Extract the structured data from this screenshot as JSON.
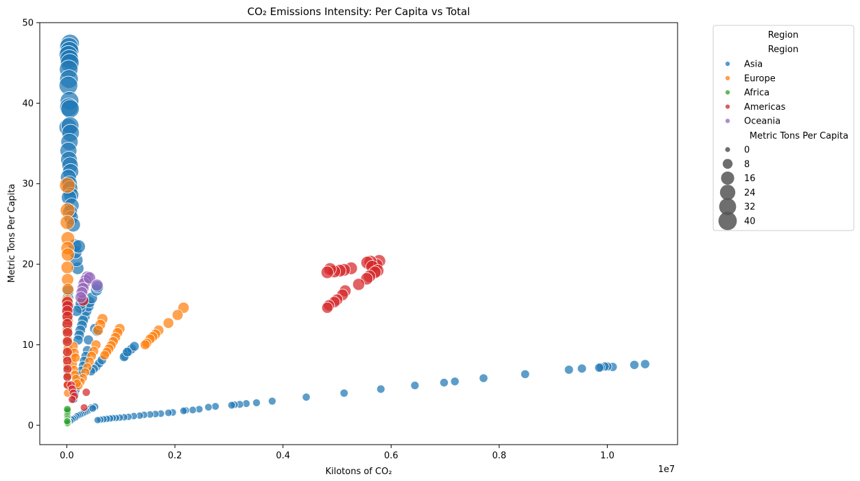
{
  "chart_data": {
    "type": "scatter",
    "title": "CO₂ Emissions Intensity: Per Capita vs Total",
    "xlabel": "Kilotons of CO₂",
    "ylabel": "Metric Tons Per Capita",
    "x_offset_label": "1e7",
    "xlim": [
      -500000,
      11300000
    ],
    "ylim": [
      -2.4,
      50
    ],
    "x_ticks": [
      0,
      2000000,
      4000000,
      6000000,
      8000000,
      10000000
    ],
    "x_tick_labels": [
      "0.0",
      "0.2",
      "0.4",
      "0.6",
      "0.8",
      "1.0"
    ],
    "y_ticks": [
      0,
      10,
      20,
      30,
      40,
      50
    ],
    "y_tick_labels": [
      "0",
      "10",
      "20",
      "30",
      "40",
      "50"
    ],
    "grid": false,
    "legend_position": "outside-right",
    "legend": {
      "title": "Region",
      "hue_header": "Region",
      "size_header": "Metric Tons Per Capita",
      "size_values": [
        0,
        8,
        16,
        24,
        32,
        40
      ],
      "size_labels": [
        "0",
        "8",
        "16",
        "24",
        "32",
        "40"
      ]
    },
    "series": [
      {
        "name": "Asia",
        "color": "#1f77b4",
        "points": [
          [
            10700000,
            7.6
          ],
          [
            10500000,
            7.5
          ],
          [
            10100000,
            7.25
          ],
          [
            10000000,
            7.3
          ],
          [
            9950000,
            7.3
          ],
          [
            9880000,
            7.2
          ],
          [
            9850000,
            7.15
          ],
          [
            9530000,
            7.05
          ],
          [
            9290000,
            6.9
          ],
          [
            8480000,
            6.35
          ],
          [
            7710000,
            5.85
          ],
          [
            7180000,
            5.45
          ],
          [
            6980000,
            5.3
          ],
          [
            6440000,
            4.95
          ],
          [
            5810000,
            4.5
          ],
          [
            5130000,
            4.0
          ],
          [
            4430000,
            3.5
          ],
          [
            3800000,
            3.0
          ],
          [
            3510000,
            2.8
          ],
          [
            3320000,
            2.7
          ],
          [
            3200000,
            2.6
          ],
          [
            3100000,
            2.55
          ],
          [
            3050000,
            2.5
          ],
          [
            2750000,
            2.35
          ],
          [
            2620000,
            2.25
          ],
          [
            2450000,
            2.0
          ],
          [
            2330000,
            1.9
          ],
          [
            2200000,
            1.85
          ],
          [
            2160000,
            1.8
          ],
          [
            1960000,
            1.6
          ],
          [
            1880000,
            1.55
          ],
          [
            1740000,
            1.45
          ],
          [
            1640000,
            1.4
          ],
          [
            1540000,
            1.35
          ],
          [
            1430000,
            1.3
          ],
          [
            1350000,
            1.2
          ],
          [
            1240000,
            1.15
          ],
          [
            1140000,
            1.05
          ],
          [
            1060000,
            1.0
          ],
          [
            980000,
            0.95
          ],
          [
            910000,
            0.9
          ],
          [
            850000,
            0.9
          ],
          [
            800000,
            0.85
          ],
          [
            740000,
            0.8
          ],
          [
            680000,
            0.75
          ],
          [
            620000,
            0.7
          ],
          [
            570000,
            0.65
          ],
          [
            1080000,
            8.6
          ],
          [
            1100000,
            8.9
          ],
          [
            1150000,
            9.2
          ],
          [
            1200000,
            9.5
          ],
          [
            1250000,
            9.8
          ],
          [
            1060000,
            8.5
          ],
          [
            1120000,
            9.1
          ],
          [
            550000,
            7.3
          ],
          [
            600000,
            7.7
          ],
          [
            650000,
            8.1
          ],
          [
            500000,
            7.0
          ],
          [
            450000,
            6.7
          ],
          [
            200000,
            19.5
          ],
          [
            180000,
            20.5
          ],
          [
            160000,
            21.5
          ],
          [
            150000,
            22.3
          ],
          [
            220000,
            22.2
          ],
          [
            60000,
            47.4
          ],
          [
            40000,
            47.0
          ],
          [
            50000,
            46.5
          ],
          [
            30000,
            46.0
          ],
          [
            45000,
            45.5
          ],
          [
            55000,
            45.0
          ],
          [
            35000,
            44.2
          ],
          [
            40000,
            43.0
          ],
          [
            30000,
            42.2
          ],
          [
            50000,
            40.3
          ],
          [
            40000,
            39.5
          ],
          [
            60000,
            39.3
          ],
          [
            20000,
            37.0
          ],
          [
            60000,
            37.2
          ],
          [
            70000,
            36.3
          ],
          [
            50000,
            35.2
          ],
          [
            30000,
            34.1
          ],
          [
            40000,
            33.0
          ],
          [
            60000,
            32.3
          ],
          [
            70000,
            31.5
          ],
          [
            30000,
            30.8
          ],
          [
            50000,
            30.0
          ],
          [
            60000,
            29.4
          ],
          [
            80000,
            28.6
          ],
          [
            40000,
            28.3
          ],
          [
            90000,
            27.3
          ],
          [
            60000,
            26.5
          ],
          [
            80000,
            25.8
          ],
          [
            120000,
            24.9
          ],
          [
            330000,
            13.5
          ],
          [
            360000,
            14.2
          ],
          [
            400000,
            14.8
          ],
          [
            420000,
            15.3
          ],
          [
            460000,
            15.8
          ],
          [
            300000,
            13.0
          ],
          [
            280000,
            12.4
          ],
          [
            250000,
            11.8
          ],
          [
            230000,
            11.2
          ],
          [
            210000,
            10.6
          ],
          [
            250000,
            14.6
          ],
          [
            260000,
            15.1
          ],
          [
            180000,
            14.2
          ],
          [
            300000,
            15.6
          ],
          [
            550000,
            16.8
          ],
          [
            570000,
            17.2
          ],
          [
            520000,
            12.0
          ],
          [
            560000,
            11.7
          ],
          [
            400000,
            10.6
          ],
          [
            380000,
            9.3
          ],
          [
            350000,
            8.6
          ],
          [
            320000,
            8.0
          ],
          [
            300000,
            7.4
          ],
          [
            270000,
            6.8
          ],
          [
            240000,
            6.2
          ],
          [
            210000,
            5.6
          ],
          [
            190000,
            5.0
          ],
          [
            170000,
            4.4
          ],
          [
            150000,
            3.8
          ],
          [
            130000,
            3.2
          ],
          [
            20000,
            15.8
          ],
          [
            25000,
            16.7
          ],
          [
            30000,
            14.9
          ],
          [
            20000,
            13.4
          ],
          [
            15000,
            12.4
          ],
          [
            20000,
            11.6
          ],
          [
            15000,
            10.2
          ],
          [
            10000,
            9.2
          ],
          [
            15000,
            8.3
          ],
          [
            10000,
            7.5
          ],
          [
            10000,
            6.8
          ],
          [
            12000,
            6.0
          ],
          [
            450000,
            2.2
          ],
          [
            420000,
            2.0
          ],
          [
            390000,
            1.8
          ],
          [
            360000,
            1.7
          ],
          [
            330000,
            1.6
          ],
          [
            300000,
            1.5
          ],
          [
            270000,
            1.4
          ],
          [
            240000,
            1.3
          ],
          [
            210000,
            1.2
          ],
          [
            180000,
            1.1
          ],
          [
            150000,
            0.9
          ],
          [
            120000,
            0.8
          ],
          [
            90000,
            0.7
          ],
          [
            60000,
            0.5
          ],
          [
            30000,
            0.4
          ],
          [
            520000,
            2.3
          ],
          [
            480000,
            2.1
          ]
        ]
      },
      {
        "name": "Europe",
        "color": "#ff7f0e",
        "points": [
          [
            2160000,
            14.6
          ],
          [
            2050000,
            13.7
          ],
          [
            1880000,
            12.7
          ],
          [
            1700000,
            11.8
          ],
          [
            1640000,
            11.3
          ],
          [
            1590000,
            11.0
          ],
          [
            1540000,
            10.7
          ],
          [
            1480000,
            10.2
          ],
          [
            1450000,
            10.0
          ],
          [
            980000,
            12.0
          ],
          [
            940000,
            11.5
          ],
          [
            900000,
            10.9
          ],
          [
            860000,
            10.4
          ],
          [
            820000,
            9.9
          ],
          [
            780000,
            9.5
          ],
          [
            740000,
            9.1
          ],
          [
            700000,
            8.7
          ],
          [
            660000,
            13.2
          ],
          [
            620000,
            12.5
          ],
          [
            580000,
            11.8
          ],
          [
            540000,
            10.0
          ],
          [
            500000,
            9.2
          ],
          [
            460000,
            8.6
          ],
          [
            420000,
            7.9
          ],
          [
            380000,
            7.2
          ],
          [
            340000,
            6.6
          ],
          [
            300000,
            5.9
          ],
          [
            260000,
            5.4
          ],
          [
            220000,
            4.9
          ],
          [
            10000,
            29.8
          ],
          [
            15000,
            26.7
          ],
          [
            10000,
            25.2
          ],
          [
            20000,
            23.2
          ],
          [
            15000,
            22.0
          ],
          [
            20000,
            21.2
          ],
          [
            10000,
            19.6
          ],
          [
            15000,
            18.1
          ],
          [
            20000,
            16.9
          ],
          [
            10000,
            15.5
          ],
          [
            15000,
            14.1
          ],
          [
            20000,
            13.0
          ],
          [
            10000,
            11.8
          ],
          [
            15000,
            10.6
          ],
          [
            20000,
            9.5
          ],
          [
            10000,
            8.4
          ],
          [
            15000,
            7.3
          ],
          [
            20000,
            6.2
          ],
          [
            10000,
            5.1
          ],
          [
            15000,
            4.0
          ],
          [
            60000,
            9.2
          ],
          [
            90000,
            8.3
          ],
          [
            110000,
            7.6
          ],
          [
            130000,
            6.9
          ],
          [
            150000,
            6.3
          ],
          [
            170000,
            5.8
          ],
          [
            190000,
            5.2
          ],
          [
            120000,
            9.8
          ],
          [
            140000,
            9.0
          ],
          [
            160000,
            8.4
          ]
        ]
      },
      {
        "name": "Africa",
        "color": "#2ca02c",
        "points": [
          [
            10000,
            0.2
          ],
          [
            12000,
            0.4
          ],
          [
            8000,
            0.6
          ],
          [
            15000,
            0.8
          ],
          [
            10000,
            1.0
          ],
          [
            12000,
            1.2
          ],
          [
            9000,
            1.4
          ],
          [
            11000,
            1.6
          ],
          [
            14000,
            1.8
          ],
          [
            10000,
            2.0
          ],
          [
            13000,
            0.3
          ],
          [
            7000,
            0.5
          ]
        ]
      },
      {
        "name": "Americas",
        "color": "#d62728",
        "points": [
          [
            5780000,
            20.4
          ],
          [
            5730000,
            19.9
          ],
          [
            5620000,
            20.3
          ],
          [
            5560000,
            20.2
          ],
          [
            5650000,
            19.7
          ],
          [
            5750000,
            19.2
          ],
          [
            5700000,
            19.0
          ],
          [
            5600000,
            18.5
          ],
          [
            5550000,
            18.2
          ],
          [
            5400000,
            17.5
          ],
          [
            5260000,
            19.5
          ],
          [
            5130000,
            19.3
          ],
          [
            5050000,
            19.2
          ],
          [
            4950000,
            19.1
          ],
          [
            4870000,
            19.4
          ],
          [
            4820000,
            19.0
          ],
          [
            5150000,
            16.7
          ],
          [
            5100000,
            16.2
          ],
          [
            5000000,
            15.6
          ],
          [
            4950000,
            15.3
          ],
          [
            4850000,
            14.9
          ],
          [
            4820000,
            14.6
          ],
          [
            10000,
            15.3
          ],
          [
            15000,
            14.8
          ],
          [
            10000,
            14.2
          ],
          [
            12000,
            13.5
          ],
          [
            10000,
            12.6
          ],
          [
            14000,
            11.5
          ],
          [
            10000,
            10.4
          ],
          [
            12000,
            9.1
          ],
          [
            10000,
            8.0
          ],
          [
            14000,
            7.0
          ],
          [
            10000,
            6.0
          ],
          [
            12000,
            5.0
          ],
          [
            80000,
            5.0
          ],
          [
            100000,
            4.5
          ],
          [
            120000,
            4.0
          ],
          [
            140000,
            3.6
          ],
          [
            100000,
            3.2
          ],
          [
            300000,
            15.5
          ],
          [
            360000,
            4.1
          ],
          [
            320000,
            2.2
          ]
        ]
      },
      {
        "name": "Oceania",
        "color": "#9467bd",
        "points": [
          [
            380000,
            18.4
          ],
          [
            350000,
            18.0
          ],
          [
            320000,
            17.6
          ],
          [
            300000,
            17.0
          ],
          [
            420000,
            18.3
          ],
          [
            560000,
            17.4
          ],
          [
            280000,
            16.5
          ],
          [
            260000,
            15.9
          ]
        ]
      }
    ]
  }
}
